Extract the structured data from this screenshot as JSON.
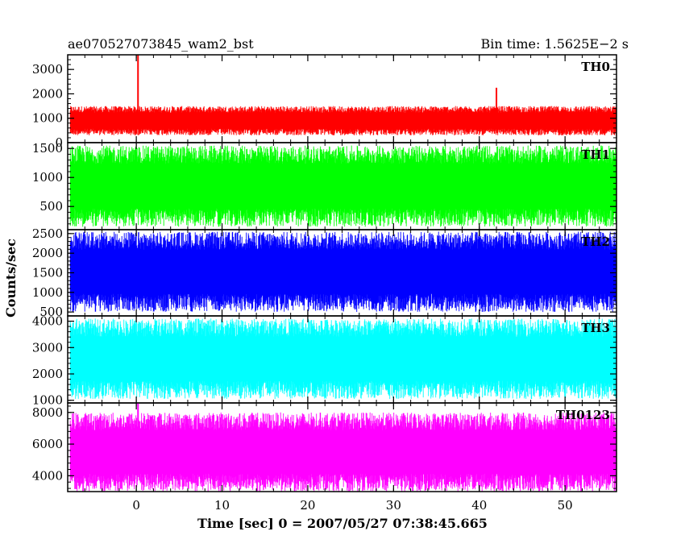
{
  "chart_data": {
    "type": "line",
    "title_left": "ae070527073845_wam2_bst",
    "title_right": "Bin time: 1.5625E−2 s",
    "xlabel": "Time [sec] 0 = 2007/05/27 07:38:45.665",
    "ylabel": "Counts/sec",
    "xlim": [
      -8,
      56
    ],
    "x_ticks": [
      0,
      10,
      20,
      30,
      40,
      50
    ],
    "x_data_range": [
      -7.7,
      56
    ],
    "panels": [
      {
        "name": "TH0",
        "color": "#ff0000",
        "ylim": [
          0,
          3600
        ],
        "y_ticks": [
          0,
          1000,
          2000,
          3000
        ],
        "band": [
          300,
          1500
        ],
        "spikes": [
          {
            "x": 0.2,
            "y": 3600
          },
          {
            "x": 42.0,
            "y": 2250
          }
        ]
      },
      {
        "name": "TH1",
        "color": "#00ff00",
        "ylim": [
          100,
          1600
        ],
        "y_ticks": [
          500,
          1000,
          1500
        ],
        "band": [
          150,
          1550
        ],
        "spikes": []
      },
      {
        "name": "TH2",
        "color": "#0000ff",
        "ylim": [
          400,
          2600
        ],
        "y_ticks": [
          500,
          1000,
          1500,
          2000,
          2500
        ],
        "band": [
          500,
          2550
        ],
        "spikes": []
      },
      {
        "name": "TH3",
        "color": "#00ffff",
        "ylim": [
          900,
          4200
        ],
        "y_ticks": [
          1000,
          2000,
          3000,
          4000
        ],
        "band": [
          1050,
          4100
        ],
        "spikes": []
      },
      {
        "name": "TH0123",
        "color": "#ff00ff",
        "ylim": [
          3000,
          8600
        ],
        "y_ticks": [
          4000,
          6000,
          8000
        ],
        "band": [
          3000,
          8000
        ],
        "spikes": [
          {
            "x": 0.2,
            "y": 8600
          }
        ]
      }
    ]
  }
}
